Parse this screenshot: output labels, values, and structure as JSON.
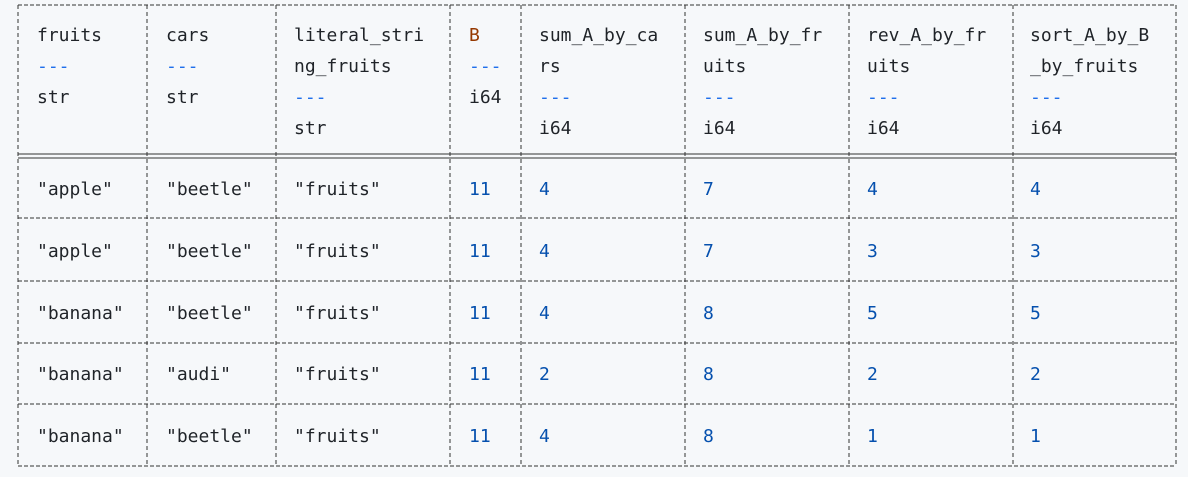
{
  "table": {
    "columns": [
      {
        "lines": [
          "fruits"
        ],
        "dashes": "---",
        "dtype": "str"
      },
      {
        "lines": [
          "cars"
        ],
        "dashes": "---",
        "dtype": "str"
      },
      {
        "lines": [
          "literal_stri",
          "ng_fruits"
        ],
        "dashes": "---",
        "dtype": "str"
      },
      {
        "lines": [
          "B"
        ],
        "dashes": "---",
        "dtype": "i64"
      },
      {
        "lines": [
          "sum_A_by_ca",
          "rs"
        ],
        "dashes": "---",
        "dtype": "i64"
      },
      {
        "lines": [
          "sum_A_by_fr",
          "uits"
        ],
        "dashes": "---",
        "dtype": "i64"
      },
      {
        "lines": [
          "rev_A_by_fr",
          "uits"
        ],
        "dashes": "---",
        "dtype": "i64"
      },
      {
        "lines": [
          "sort_A_by_B",
          "_by_fruits"
        ],
        "dashes": "---",
        "dtype": "i64"
      }
    ],
    "rows": [
      [
        "\"apple\"",
        "\"beetle\"",
        "\"fruits\"",
        "11",
        "4",
        "7",
        "4",
        "4"
      ],
      [
        "\"apple\"",
        "\"beetle\"",
        "\"fruits\"",
        "11",
        "4",
        "7",
        "3",
        "3"
      ],
      [
        "\"banana\"",
        "\"beetle\"",
        "\"fruits\"",
        "11",
        "4",
        "8",
        "5",
        "5"
      ],
      [
        "\"banana\"",
        "\"audi\"",
        "\"fruits\"",
        "11",
        "2",
        "8",
        "2",
        "2"
      ],
      [
        "\"banana\"",
        "\"beetle\"",
        "\"fruits\"",
        "11",
        "4",
        "8",
        "1",
        "1"
      ]
    ]
  }
}
